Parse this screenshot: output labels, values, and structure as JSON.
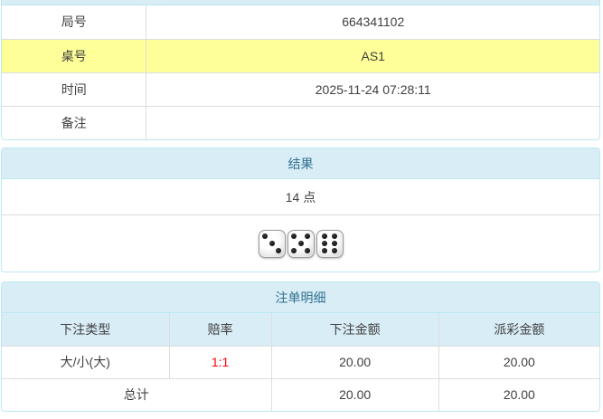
{
  "colors": {
    "accent_bg": "#d9edf7",
    "accent_border": "#bce8f1",
    "accent_text": "#31708f",
    "highlight_row_bg": "#ffff99",
    "odds_color": "#ff0000",
    "grid_border": "#dddddd"
  },
  "info": {
    "rows": [
      {
        "label": "局号",
        "value": "664341102",
        "highlight": false
      },
      {
        "label": "桌号",
        "value": "AS1",
        "highlight": true
      },
      {
        "label": "时间",
        "value": "2025-11-24 07:28:11",
        "highlight": false
      },
      {
        "label": "备注",
        "value": "",
        "highlight": false
      }
    ]
  },
  "result": {
    "title": "结果",
    "points": "14 点",
    "dice": [
      3,
      5,
      6
    ]
  },
  "bets": {
    "title": "注单明细",
    "columns": [
      "下注类型",
      "赔率",
      "下注金额",
      "派彩金额"
    ],
    "rows": [
      {
        "type": "大/小(大)",
        "odds": "1:1",
        "bet": "20.00",
        "payout": "20.00"
      }
    ],
    "total": {
      "label": "总计",
      "bet": "20.00",
      "payout": "20.00"
    }
  }
}
